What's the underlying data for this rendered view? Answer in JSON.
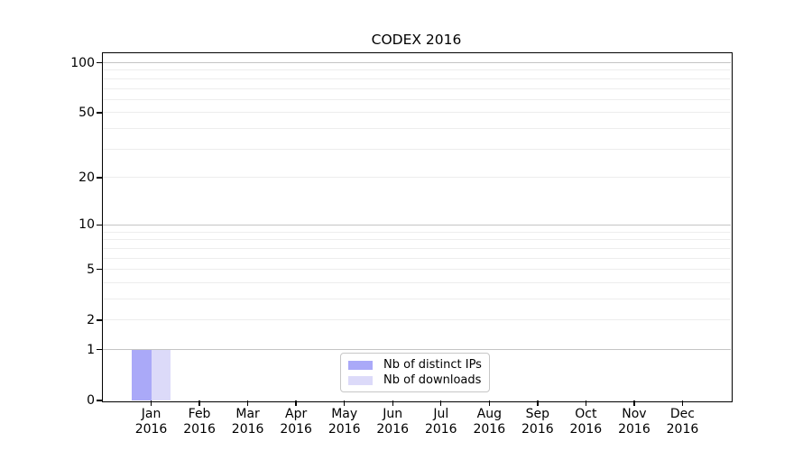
{
  "chart_data": {
    "type": "bar",
    "title": "CODEX 2016",
    "categories": [
      "Jan",
      "Feb",
      "Mar",
      "Apr",
      "May",
      "Jun",
      "Jul",
      "Aug",
      "Sep",
      "Oct",
      "Nov",
      "Dec"
    ],
    "category_year": "2016",
    "series": [
      {
        "name": "Nb of distinct IPs",
        "color": "#aaa9f8",
        "values": [
          1,
          0,
          0,
          0,
          0,
          0,
          0,
          0,
          0,
          0,
          0,
          0
        ]
      },
      {
        "name": "Nb of downloads",
        "color": "#dcdaf9",
        "values": [
          1,
          0,
          0,
          0,
          0,
          0,
          0,
          0,
          0,
          0,
          0,
          0
        ]
      }
    ],
    "xlabel": "",
    "ylabel": "",
    "y_axis": {
      "scale": "log1p",
      "min": 0,
      "max": 114,
      "tick_values": [
        0,
        1,
        2,
        5,
        10,
        20,
        50,
        100
      ],
      "tick_labels": [
        "0",
        "1",
        "2",
        "5",
        "10",
        "20",
        "50",
        "100"
      ],
      "major_gridlines": [
        1,
        10,
        100
      ],
      "minor_gridlines": [
        2,
        3,
        4,
        5,
        6,
        7,
        8,
        9,
        20,
        30,
        40,
        50,
        60,
        70,
        80,
        90
      ]
    },
    "grid": {
      "on": true,
      "major_color": "#c4c4c4",
      "minor_color": "#ededed"
    },
    "axis_color": "#000000",
    "legend": {
      "position": "lower center"
    }
  }
}
